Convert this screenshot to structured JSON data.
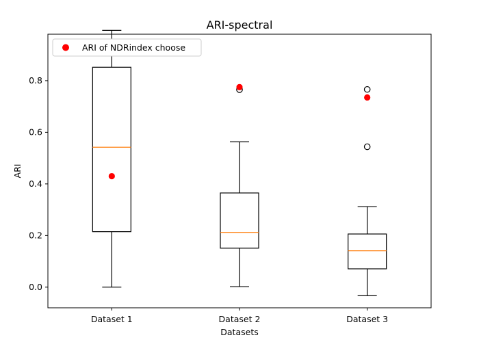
{
  "chart_data": {
    "type": "box",
    "title": "ARI-spectral",
    "xlabel": "Datasets",
    "ylabel": "ARI",
    "ylim": [
      -0.08,
      0.98
    ],
    "yticks": [
      0.0,
      0.2,
      0.4,
      0.6,
      0.8
    ],
    "ytick_labels": [
      "0.0",
      "0.2",
      "0.4",
      "0.6",
      "0.8"
    ],
    "categories": [
      "Dataset 1",
      "Dataset 2",
      "Dataset 3"
    ],
    "boxes": [
      {
        "whisker_low": 0.0,
        "q1": 0.215,
        "median": 0.542,
        "q3": 0.852,
        "whisker_high": 0.995,
        "fliers": []
      },
      {
        "whisker_low": 0.002,
        "q1": 0.151,
        "median": 0.212,
        "q3": 0.365,
        "whisker_high": 0.563,
        "fliers": [
          0.765
        ]
      },
      {
        "whisker_low": -0.033,
        "q1": 0.071,
        "median": 0.141,
        "q3": 0.206,
        "whisker_high": 0.312,
        "fliers": [
          0.766,
          0.544
        ]
      }
    ],
    "markers": {
      "name": "ARI of NDRindex choose",
      "color": "#ff0000",
      "values": [
        0.43,
        0.775,
        0.735
      ]
    },
    "median_color": "#ff7f0e",
    "legend_position": "upper-left"
  }
}
